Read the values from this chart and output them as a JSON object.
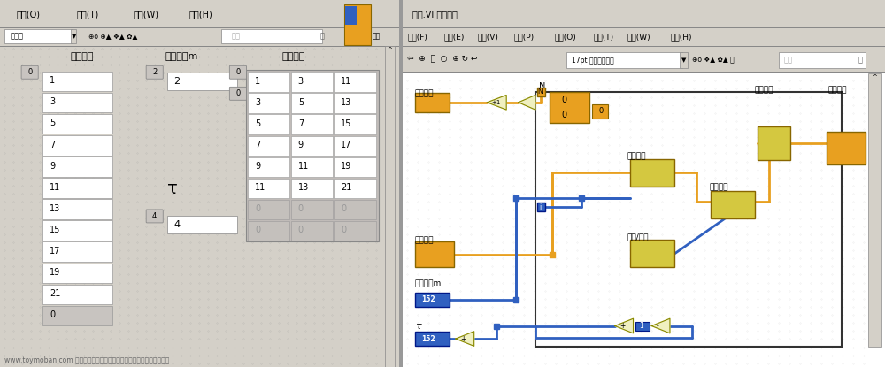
{
  "fig_width": 10.0,
  "fig_height": 4.15,
  "bg_color": "#c8c8c8",
  "left_panel": {
    "bg": "#d4d0c8",
    "menubar_text": [
      "操作(O)",
      "工具(T)",
      "窗口(W)",
      "帮助(H)"
    ],
    "col1_label": "采集数据",
    "col2_label": "数据宽度m",
    "col3_label": "重构数据",
    "col1_values": [
      "1",
      "3",
      "5",
      "7",
      "9",
      "11",
      "13",
      "15",
      "17",
      "19",
      "21",
      "0"
    ],
    "m_value": "2",
    "tau_value": "4",
    "matrix_data": [
      [
        "1",
        "3",
        "11"
      ],
      [
        "3",
        "5",
        "13"
      ],
      [
        "5",
        "7",
        "15"
      ],
      [
        "7",
        "9",
        "17"
      ],
      [
        "9",
        "11",
        "19"
      ],
      [
        "11",
        "13",
        "21"
      ],
      [
        "0",
        "0",
        "0"
      ],
      [
        "0",
        "0",
        "0"
      ]
    ]
  },
  "right_panel": {
    "menubar_text": [
      "文件(F)",
      "编辑(E)",
      "查看(V)",
      "项目(P)",
      "操作(O)",
      "工具(T)",
      "窗口(W)",
      "帮助(H)"
    ],
    "orange": "#e8a020",
    "blue": "#3060c0"
  }
}
